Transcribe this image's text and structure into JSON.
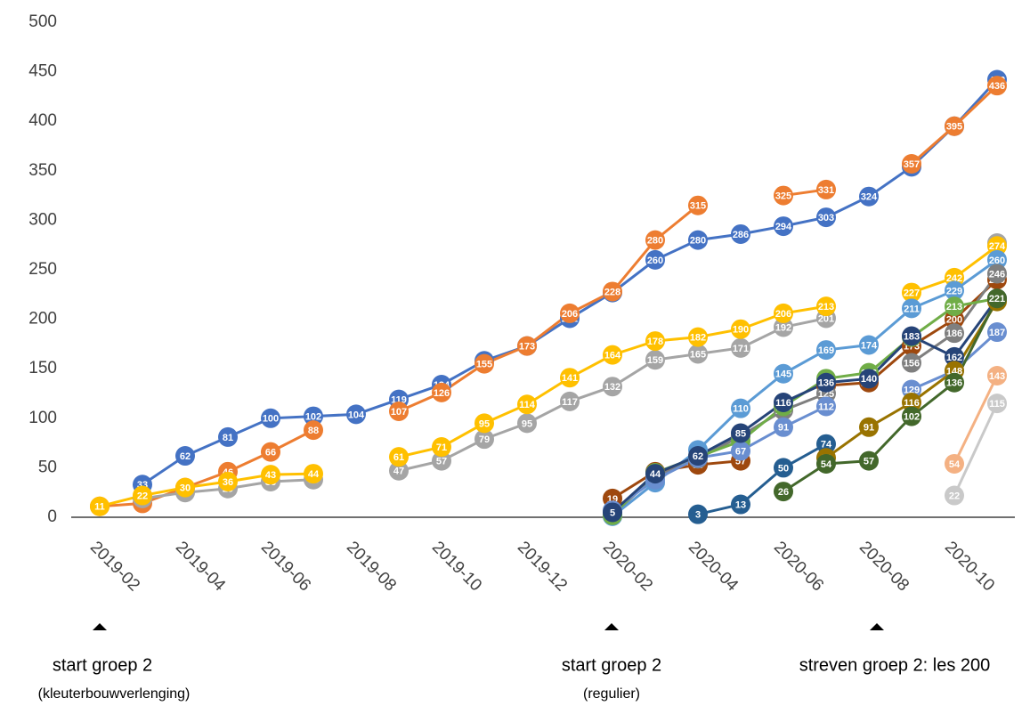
{
  "chart_data": {
    "type": "line",
    "categories": [
      "2019-02",
      null,
      "2019-04",
      null,
      "2019-06",
      null,
      "2019-08",
      null,
      "2019-10",
      null,
      "2019-12",
      null,
      "2020-02",
      null,
      "2020-04",
      null,
      "2020-06",
      null,
      "2020-08",
      null,
      "2020-10",
      null
    ],
    "ylim": [
      0,
      500
    ],
    "yticks": [
      0,
      50,
      100,
      150,
      200,
      250,
      300,
      350,
      400,
      450,
      500
    ],
    "grid": false,
    "series": [
      {
        "color": "#4472c4",
        "values": [
          null,
          33,
          62,
          81,
          100,
          102,
          104,
          119,
          134,
          158,
          173,
          201,
          227,
          260,
          280,
          286,
          294,
          303,
          324,
          354,
          395,
          442
        ]
      },
      {
        "color": "#ed7d31",
        "values": [
          11,
          14,
          30,
          46,
          66,
          88,
          null,
          107,
          126,
          155,
          173,
          206,
          228,
          280,
          315,
          null,
          325,
          331,
          null,
          357,
          395,
          436
        ]
      },
      {
        "color": "#a5a5a5",
        "values": [
          null,
          19,
          25,
          29,
          36,
          38,
          null,
          47,
          57,
          79,
          95,
          117,
          132,
          159,
          165,
          171,
          192,
          201,
          null,
          null,
          null,
          277
        ]
      },
      {
        "color": "#ffc000",
        "values": [
          11,
          22,
          30,
          36,
          43,
          44,
          null,
          61,
          71,
          95,
          114,
          141,
          164,
          178,
          182,
          190,
          206,
          213,
          null,
          227,
          242,
          274
        ]
      },
      {
        "color": "#5b9bd5",
        "values": [
          null,
          null,
          null,
          null,
          null,
          null,
          null,
          null,
          null,
          null,
          null,
          null,
          1,
          35,
          68,
          110,
          145,
          169,
          174,
          211,
          229,
          260
        ]
      },
      {
        "color": "#9e480e",
        "values": [
          null,
          null,
          null,
          null,
          null,
          null,
          null,
          null,
          null,
          null,
          null,
          null,
          19,
          46,
          53,
          57,
          null,
          133,
          136,
          173,
          200,
          240
        ]
      },
      {
        "color": "#7f7f7f",
        "values": [
          null,
          null,
          null,
          null,
          null,
          null,
          null,
          null,
          null,
          null,
          null,
          null,
          3,
          41,
          59,
          82,
          108,
          125,
          null,
          156,
          186,
          246
        ]
      },
      {
        "color": "#70ad47",
        "values": [
          null,
          null,
          null,
          null,
          null,
          null,
          null,
          null,
          null,
          null,
          null,
          null,
          2,
          45,
          61,
          77,
          112,
          140,
          146,
          182,
          213,
          221
        ]
      },
      {
        "color": "#698ed0",
        "values": [
          null,
          null,
          null,
          null,
          null,
          null,
          null,
          null,
          null,
          null,
          null,
          null,
          7,
          38,
          60,
          67,
          91,
          112,
          null,
          129,
          148,
          187
        ]
      },
      {
        "color": "#264478",
        "values": [
          null,
          null,
          null,
          null,
          null,
          null,
          null,
          null,
          null,
          null,
          null,
          null,
          5,
          44,
          62,
          85,
          116,
          136,
          140,
          183,
          162,
          221
        ]
      },
      {
        "color": "#255e91",
        "values": [
          null,
          null,
          null,
          null,
          null,
          null,
          null,
          null,
          null,
          null,
          null,
          null,
          null,
          null,
          3,
          13,
          50,
          74,
          null,
          null,
          null,
          null
        ]
      },
      {
        "color": "#997300",
        "values": [
          null,
          null,
          null,
          null,
          null,
          null,
          null,
          null,
          null,
          null,
          null,
          null,
          null,
          null,
          null,
          null,
          null,
          60,
          91,
          116,
          148,
          218
        ]
      },
      {
        "color": "#43682b",
        "values": [
          null,
          null,
          null,
          null,
          null,
          null,
          null,
          null,
          null,
          null,
          null,
          null,
          null,
          null,
          null,
          null,
          26,
          54,
          57,
          102,
          136,
          221
        ]
      },
      {
        "color": "#f4b183",
        "values": [
          null,
          null,
          null,
          null,
          null,
          null,
          null,
          null,
          null,
          null,
          null,
          null,
          null,
          null,
          null,
          null,
          null,
          null,
          null,
          null,
          54,
          143
        ]
      },
      {
        "color": "#c9c9c9",
        "values": [
          null,
          null,
          null,
          null,
          null,
          null,
          null,
          null,
          null,
          null,
          null,
          null,
          null,
          null,
          null,
          null,
          null,
          null,
          null,
          null,
          22,
          115
        ]
      }
    ]
  },
  "annotations": [
    "start groep 2",
    "(kleuterbouwverlenging)",
    "start groep 2",
    "(regulier)",
    "streven groep 2: les 200"
  ]
}
